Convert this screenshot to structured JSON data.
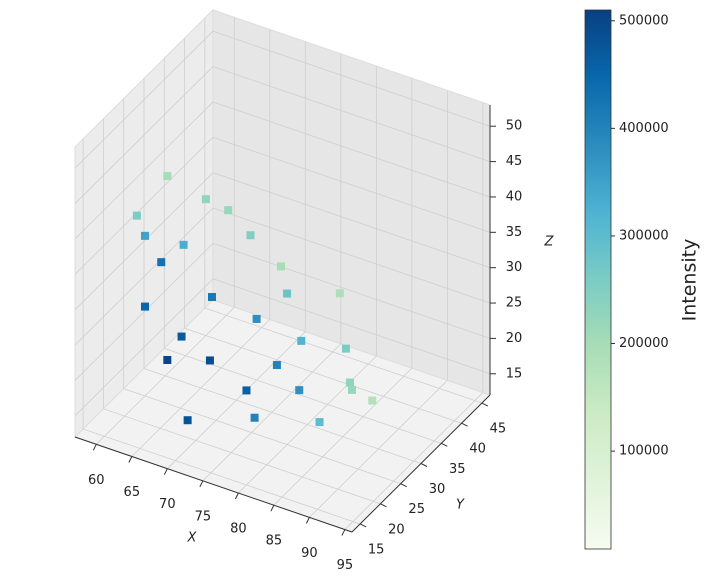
{
  "chart_data": {
    "type": "scatter3d",
    "x_label": "X",
    "y_label": "Y",
    "z_label": "Z",
    "xlim": [
      57,
      96
    ],
    "ylim": [
      13,
      47
    ],
    "zlim": [
      12,
      53
    ],
    "xticks": [
      60,
      65,
      70,
      75,
      80,
      85,
      90,
      95
    ],
    "yticks": [
      15,
      20,
      25,
      30,
      35,
      40,
      45
    ],
    "zticks": [
      15,
      20,
      25,
      30,
      35,
      40,
      45,
      50
    ],
    "grid": true,
    "x": [
      64,
      64,
      66,
      66,
      70,
      76,
      84,
      88,
      70,
      74,
      78,
      82,
      72,
      68,
      74,
      80,
      76,
      80,
      64,
      68,
      86,
      64,
      70,
      66,
      72,
      78,
      84,
      76
    ],
    "y": [
      18,
      18,
      20,
      20,
      18,
      24,
      26,
      32,
      24,
      28,
      32,
      36,
      30,
      26,
      34,
      38,
      22,
      28,
      22,
      20,
      30,
      16,
      28,
      24,
      20,
      26,
      34,
      32
    ],
    "z": [
      30,
      40,
      48,
      22,
      16,
      15,
      16,
      17,
      30,
      26,
      22,
      20,
      36,
      42,
      30,
      26,
      20,
      18,
      34,
      26,
      20,
      44,
      40,
      36,
      24,
      22,
      16,
      28
    ],
    "values": [
      450000,
      350000,
      200000,
      500000,
      480000,
      400000,
      300000,
      180000,
      420000,
      380000,
      320000,
      260000,
      250000,
      230000,
      200000,
      190000,
      460000,
      380000,
      430000,
      470000,
      230000,
      260000,
      220000,
      330000,
      490000,
      400000,
      220000,
      280000
    ],
    "colorbar": {
      "label": "Intensity",
      "clim": [
        9000,
        510000
      ],
      "ticks": [
        100000,
        200000,
        300000,
        400000,
        500000
      ],
      "colors": [
        "#f7fcf0",
        "#e0f3db",
        "#ccebc5",
        "#a8ddb5",
        "#7bccc4",
        "#4eb3d3",
        "#2b8cbe",
        "#0868ac",
        "#084081"
      ]
    }
  }
}
